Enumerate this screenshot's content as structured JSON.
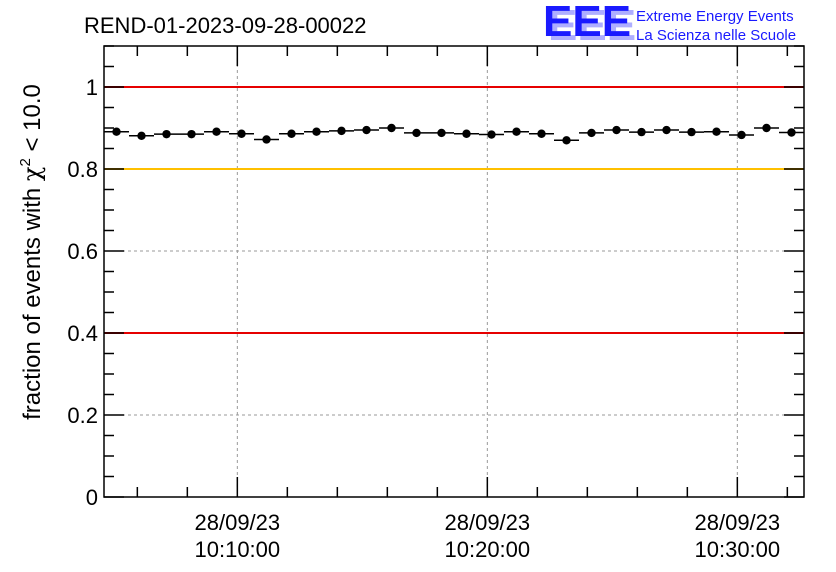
{
  "chart_data": {
    "type": "scatter",
    "title": "REND-01-2023-09-28-00022",
    "ylabel": "fraction of events with χ² < 10.0",
    "ylabel_parts": {
      "before": "fraction of events with ",
      "chi": "χ",
      "sup": "2",
      "after": " < 10.0"
    },
    "xlabel": "",
    "ylim": [
      0,
      1.1
    ],
    "y_ticks": [
      "0",
      "0.2",
      "0.4",
      "0.6",
      "0.8",
      "1"
    ],
    "x_ticks": [
      {
        "date": "28/09/23",
        "time": "10:10:00"
      },
      {
        "date": "28/09/23",
        "time": "10:20:00"
      },
      {
        "date": "28/09/23",
        "time": "10:30:00"
      }
    ],
    "x_range": [
      "2023-09-28 10:04:40",
      "2023-09-28 10:32:40"
    ],
    "x": [
      "10:05:10",
      "10:06:10",
      "10:07:10",
      "10:08:10",
      "10:09:10",
      "10:10:10",
      "10:11:10",
      "10:12:10",
      "10:13:10",
      "10:14:10",
      "10:15:10",
      "10:16:10",
      "10:17:10",
      "10:18:10",
      "10:19:10",
      "10:20:10",
      "10:21:10",
      "10:22:10",
      "10:23:10",
      "10:24:10",
      "10:25:10",
      "10:26:10",
      "10:27:10",
      "10:28:10",
      "10:29:10",
      "10:30:10",
      "10:31:10",
      "10:32:10"
    ],
    "values": [
      0.891,
      0.881,
      0.885,
      0.885,
      0.891,
      0.886,
      0.872,
      0.886,
      0.891,
      0.893,
      0.895,
      0.9,
      0.888,
      0.888,
      0.886,
      0.884,
      0.891,
      0.886,
      0.87,
      0.888,
      0.895,
      0.89,
      0.895,
      0.89,
      0.891,
      0.883,
      0.9,
      0.889
    ],
    "reference_lines": [
      {
        "y": 1.0,
        "color": "#e60000"
      },
      {
        "y": 0.8,
        "color": "#ffc000"
      },
      {
        "y": 0.4,
        "color": "#e60000"
      }
    ],
    "grid": true,
    "marker_color": "#000000"
  },
  "logo": {
    "letters": "EEE",
    "line1": "Extreme Energy Events",
    "line2": "La Scienza nelle Scuole",
    "color": "#1a1aff"
  }
}
